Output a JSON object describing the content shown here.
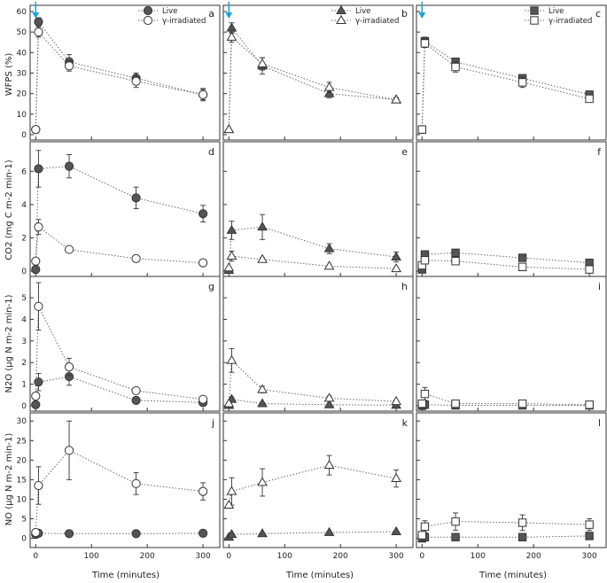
{
  "figure": {
    "xlabel": "Time (minutes)",
    "ylabels": [
      "WFPS (%)",
      "CO2 (mg C m-2 min-1)",
      "N2O (μg N m-2 min-1)",
      "NO (μg N m-2 min-1)"
    ],
    "xticks": [
      "0",
      "100",
      "200",
      "300"
    ],
    "yticks": [
      [
        "0",
        "10",
        "20",
        "30",
        "40",
        "50",
        "60"
      ],
      [
        "0",
        "2",
        "4",
        "6"
      ],
      [
        "0",
        "1",
        "2",
        "3",
        "4",
        "5"
      ],
      [
        "0",
        "5",
        "10",
        "15",
        "20",
        "25",
        "30"
      ]
    ],
    "panel_letters": [
      "a",
      "b",
      "c",
      "d",
      "e",
      "f",
      "g",
      "h",
      "i",
      "j",
      "k",
      "l"
    ],
    "legends": [
      {
        "column": 0,
        "entries": [
          "Live",
          "γ-irradiated"
        ],
        "placement": "top-right"
      },
      {
        "column": 1,
        "entries": [
          "Live",
          "γ-irradiated"
        ],
        "placement": "top-right"
      },
      {
        "column": 2,
        "entries": [
          "Live",
          "γ-irradiated"
        ],
        "placement": "top-right"
      }
    ],
    "arrow_color": "#1aa3e0",
    "colors": {
      "live_fill": "#555555",
      "irradiated_fill": "#ffffff",
      "stroke": "#333333"
    }
  },
  "chart_data": [
    {
      "type": "line",
      "panel": "a",
      "ylim": [
        0,
        60
      ],
      "xlim": [
        -10,
        330
      ],
      "marker": "circle",
      "arrow": true,
      "series": [
        {
          "name": "Live",
          "x": [
            0,
            5,
            60,
            180,
            300
          ],
          "y": [
            2.5,
            55,
            35.5,
            27.5,
            19.5
          ],
          "err": [
            0,
            2,
            3.5,
            2.5,
            2.5
          ]
        },
        {
          "name": "γ-irradiated",
          "x": [
            0,
            5,
            60,
            180,
            300
          ],
          "y": [
            2.5,
            50,
            33.5,
            26,
            19.5
          ],
          "err": [
            0,
            2.5,
            2.5,
            3,
            3
          ]
        }
      ]
    },
    {
      "type": "line",
      "panel": "b",
      "ylim": [
        0,
        60
      ],
      "xlim": [
        -10,
        330
      ],
      "marker": "triangle",
      "arrow": true,
      "series": [
        {
          "name": "Live",
          "x": [
            0,
            5,
            60,
            180,
            300
          ],
          "y": [
            2.5,
            52,
            33.5,
            20,
            17
          ],
          "err": [
            0,
            2.5,
            4,
            2,
            1
          ]
        },
        {
          "name": "γ-irradiated",
          "x": [
            0,
            5,
            60,
            180,
            300
          ],
          "y": [
            2.5,
            47.5,
            34.5,
            23,
            17
          ],
          "err": [
            0,
            2.5,
            3,
            2.5,
            1
          ]
        }
      ]
    },
    {
      "type": "line",
      "panel": "c",
      "ylim": [
        0,
        60
      ],
      "xlim": [
        -10,
        330
      ],
      "marker": "square",
      "arrow": true,
      "series": [
        {
          "name": "Live",
          "x": [
            0,
            5,
            60,
            180,
            300
          ],
          "y": [
            2.5,
            45.5,
            35.5,
            27.5,
            19.5
          ],
          "err": [
            0,
            2,
            1.5,
            1.5,
            1
          ]
        },
        {
          "name": "γ-irradiated",
          "x": [
            0,
            5,
            60,
            180,
            300
          ],
          "y": [
            2.5,
            44.5,
            33,
            25.5,
            17.5
          ],
          "err": [
            0,
            2,
            2.5,
            2.5,
            1
          ]
        }
      ]
    },
    {
      "type": "line",
      "panel": "d",
      "ylim": [
        0,
        7.4
      ],
      "xlim": [
        -10,
        330
      ],
      "marker": "circle",
      "series": [
        {
          "name": "Live",
          "x": [
            0,
            5,
            60,
            180,
            300
          ],
          "y": [
            0.1,
            6.15,
            6.3,
            4.4,
            3.45
          ],
          "err": [
            0,
            1.1,
            0.7,
            0.65,
            0.5
          ]
        },
        {
          "name": "γ-irradiated",
          "x": [
            0,
            5,
            60,
            180,
            300
          ],
          "y": [
            0.6,
            2.65,
            1.3,
            0.75,
            0.5
          ],
          "err": [
            0,
            0.45,
            0.15,
            0.1,
            0.05
          ]
        }
      ]
    },
    {
      "type": "line",
      "panel": "e",
      "ylim": [
        0,
        7.4
      ],
      "xlim": [
        -10,
        330
      ],
      "marker": "triangle",
      "series": [
        {
          "name": "Live",
          "x": [
            0,
            5,
            60,
            180,
            300
          ],
          "y": [
            0.05,
            2.45,
            2.65,
            1.35,
            0.85
          ],
          "err": [
            0,
            0.55,
            0.75,
            0.3,
            0.3
          ]
        },
        {
          "name": "γ-irradiated",
          "x": [
            0,
            5,
            60,
            180,
            300
          ],
          "y": [
            0.2,
            0.9,
            0.7,
            0.3,
            0.15
          ],
          "err": [
            0,
            0.3,
            0.1,
            0.05,
            0.05
          ]
        }
      ]
    },
    {
      "type": "line",
      "panel": "f",
      "ylim": [
        0,
        7.4
      ],
      "xlim": [
        -10,
        330
      ],
      "marker": "square",
      "series": [
        {
          "name": "Live",
          "x": [
            0,
            5,
            60,
            180,
            300
          ],
          "y": [
            0.1,
            1.0,
            1.1,
            0.8,
            0.5
          ],
          "err": [
            0,
            0.15,
            0.2,
            0.1,
            0.1
          ]
        },
        {
          "name": "γ-irradiated",
          "x": [
            0,
            5,
            60,
            180,
            300
          ],
          "y": [
            0.35,
            0.65,
            0.6,
            0.25,
            0.1
          ],
          "err": [
            0,
            0.1,
            0.1,
            0.05,
            0.05
          ]
        }
      ]
    },
    {
      "type": "line",
      "panel": "g",
      "ylim": [
        0,
        5.7
      ],
      "xlim": [
        -10,
        330
      ],
      "marker": "circle",
      "series": [
        {
          "name": "Live",
          "x": [
            0,
            5,
            60,
            180,
            300
          ],
          "y": [
            0.05,
            1.1,
            1.35,
            0.25,
            0.15
          ],
          "err": [
            0,
            0.4,
            0.4,
            0.05,
            0.05
          ]
        },
        {
          "name": "γ-irradiated",
          "x": [
            0,
            5,
            60,
            180,
            300
          ],
          "y": [
            0.45,
            4.6,
            1.8,
            0.7,
            0.3
          ],
          "err": [
            0,
            1.1,
            0.4,
            0.1,
            0.05
          ]
        }
      ]
    },
    {
      "type": "line",
      "panel": "h",
      "ylim": [
        0,
        5.7
      ],
      "xlim": [
        -10,
        330
      ],
      "marker": "triangle",
      "series": [
        {
          "name": "Live",
          "x": [
            0,
            5,
            60,
            180,
            300
          ],
          "y": [
            0.02,
            0.3,
            0.1,
            0.05,
            0.03
          ],
          "err": [
            0,
            0.1,
            0.05,
            0.02,
            0.02
          ]
        },
        {
          "name": "γ-irradiated",
          "x": [
            0,
            5,
            60,
            180,
            300
          ],
          "y": [
            0.1,
            2.1,
            0.75,
            0.35,
            0.2
          ],
          "err": [
            0,
            0.55,
            0.15,
            0.1,
            0.05
          ]
        }
      ]
    },
    {
      "type": "line",
      "panel": "i",
      "ylim": [
        0,
        5.7
      ],
      "xlim": [
        -10,
        330
      ],
      "marker": "square",
      "series": [
        {
          "name": "Live",
          "x": [
            0,
            5,
            60,
            180,
            300
          ],
          "y": [
            0.0,
            0.05,
            0.02,
            0.02,
            0.02
          ],
          "err": [
            0,
            0.05,
            0.02,
            0.02,
            0.02
          ]
        },
        {
          "name": "γ-irradiated",
          "x": [
            0,
            5,
            60,
            180,
            300
          ],
          "y": [
            0.1,
            0.55,
            0.1,
            0.1,
            0.05
          ],
          "err": [
            0,
            0.3,
            0.05,
            0.05,
            0.05
          ]
        }
      ]
    },
    {
      "type": "line",
      "panel": "j",
      "ylim": [
        -1,
        30.5
      ],
      "xlim": [
        -10,
        330
      ],
      "marker": "circle",
      "series": [
        {
          "name": "Live",
          "x": [
            0,
            5,
            60,
            180,
            300
          ],
          "y": [
            1.0,
            1.3,
            1.2,
            1.2,
            1.3
          ],
          "err": [
            0,
            0.2,
            0.2,
            0.2,
            0.2
          ]
        },
        {
          "name": "γ-irradiated",
          "x": [
            0,
            5,
            60,
            180,
            300
          ],
          "y": [
            1.5,
            13.5,
            22.5,
            14,
            12
          ],
          "err": [
            0,
            4.8,
            7.5,
            2.8,
            2.2
          ]
        }
      ]
    },
    {
      "type": "line",
      "panel": "k",
      "ylim": [
        -1,
        30.5
      ],
      "xlim": [
        -10,
        330
      ],
      "marker": "triangle",
      "series": [
        {
          "name": "Live",
          "x": [
            0,
            5,
            60,
            180,
            300
          ],
          "y": [
            0.3,
            1.0,
            1.2,
            1.5,
            1.7
          ],
          "err": [
            0,
            0.2,
            0.2,
            0.2,
            0.2
          ]
        },
        {
          "name": "γ-irradiated",
          "x": [
            0,
            5,
            60,
            180,
            300
          ],
          "y": [
            8.5,
            12,
            14.3,
            18.7,
            15.3
          ],
          "err": [
            0,
            3.5,
            3.5,
            2.5,
            2.2
          ]
        }
      ]
    },
    {
      "type": "line",
      "panel": "l",
      "ylim": [
        -1,
        30.5
      ],
      "xlim": [
        -10,
        330
      ],
      "marker": "square",
      "series": [
        {
          "name": "Live",
          "x": [
            0,
            5,
            60,
            180,
            300
          ],
          "y": [
            0.0,
            0.3,
            0.3,
            0.3,
            0.6
          ],
          "err": [
            0,
            0.2,
            0.2,
            0.2,
            0.2
          ]
        },
        {
          "name": "γ-irradiated",
          "x": [
            0,
            5,
            60,
            180,
            300
          ],
          "y": [
            0.8,
            3.0,
            4.3,
            4.0,
            3.5
          ],
          "err": [
            0,
            1.5,
            2.2,
            2.0,
            1.5
          ]
        }
      ]
    }
  ]
}
